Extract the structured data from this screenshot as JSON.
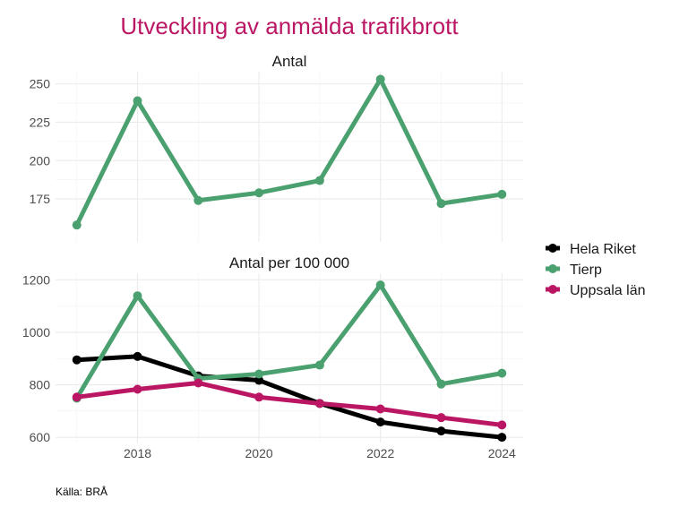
{
  "chart_data": {
    "type": "line",
    "title": "Utveckling av anmälda trafikbrott",
    "source": "Källa: BRÅ",
    "x": [
      2017,
      2018,
      2019,
      2020,
      2021,
      2022,
      2023,
      2024
    ],
    "x_ticks": [
      "2018",
      "2020",
      "2022",
      "2024"
    ],
    "xlim": [
      2016.65,
      2024.35
    ],
    "colors": {
      "Hela Riket": "#000000",
      "Tierp": "#4aa06e",
      "Uppsala län": "#bb1664"
    },
    "legend": {
      "placement": "right",
      "entries": [
        "Hela Riket",
        "Tierp",
        "Uppsala län"
      ]
    },
    "panels": [
      {
        "title": "Antal",
        "ylim": [
          147,
          258
        ],
        "y_ticks": [
          175,
          200,
          225,
          250
        ],
        "series": [
          {
            "name": "Tierp",
            "values": [
              158,
              239,
              174,
              179,
              187,
              253,
              172,
              178
            ]
          }
        ]
      },
      {
        "title": "Antal per 100 000",
        "ylim": [
          580,
          1225
        ],
        "y_ticks": [
          600,
          800,
          1000,
          1200
        ],
        "series": [
          {
            "name": "Hela Riket",
            "values": [
              895,
              908,
              834,
              817,
              729,
              658,
              624,
              600
            ]
          },
          {
            "name": "Tierp",
            "values": [
              749,
              1139,
              824,
              841,
              875,
              1180,
              803,
              844
            ]
          },
          {
            "name": "Uppsala län",
            "values": [
              753,
              783,
              807,
              753,
              729,
              708,
              675,
              647
            ]
          }
        ]
      }
    ]
  }
}
